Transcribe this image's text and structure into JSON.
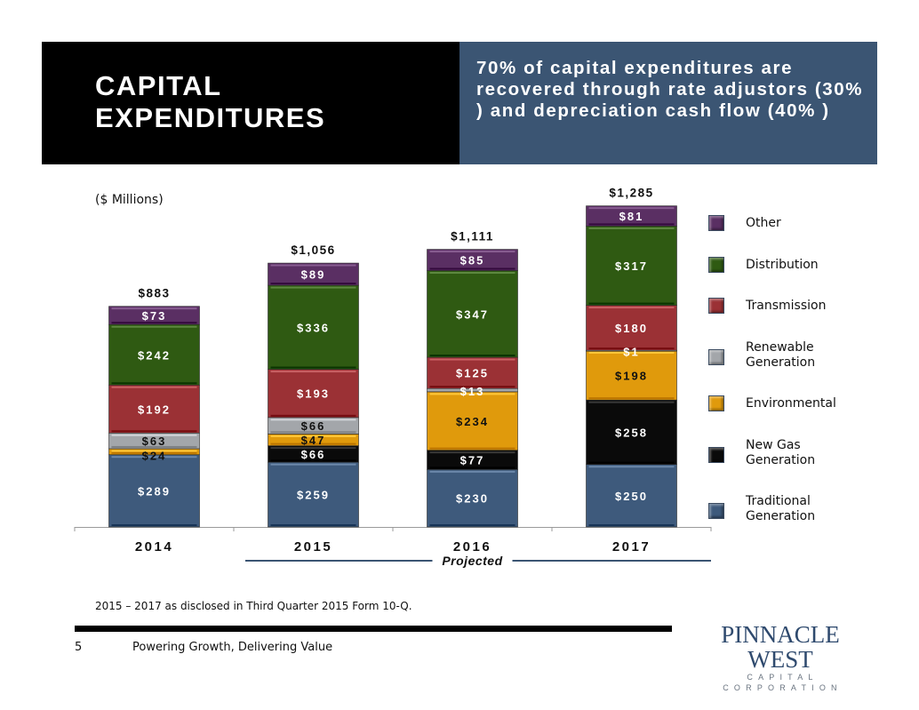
{
  "header": {
    "title_line1": "CAPITAL",
    "title_line2": "EXPENDITURES",
    "subtitle": "70%  of capital expenditures are recovered through rate adjustors (30% ) and depreciation cash flow (40% )",
    "left_bg": "#000000",
    "right_bg": "#3b5573"
  },
  "units_label": "($ Millions)",
  "chart_data": {
    "type": "bar",
    "stacked": true,
    "title": "Capital Expenditures",
    "ylabel": "($ Millions)",
    "xlabel": "",
    "categories": [
      "2014",
      "2015",
      "2016",
      "2017"
    ],
    "ylim": [
      0,
      1400
    ],
    "grid": false,
    "legend_position": "right",
    "totals": [
      "$883",
      "$1,056",
      "$1,111",
      "$1,285"
    ],
    "total_values": [
      883,
      1056,
      1111,
      1285
    ],
    "series": [
      {
        "name": "Traditional Generation",
        "color": "#3e5a7c",
        "label_color": "#ffffff",
        "values": [
          289,
          259,
          230,
          250
        ]
      },
      {
        "name": "New Gas Generation",
        "color": "#0a0a0a",
        "label_color": "#ffffff",
        "values": [
          0,
          66,
          77,
          258
        ]
      },
      {
        "name": "Environmental",
        "color": "#e09a0c",
        "label_color": "#111111",
        "values": [
          24,
          47,
          234,
          198
        ]
      },
      {
        "name": "Renewable Generation",
        "color": "#a3a6aa",
        "label_color": "#111111",
        "values": [
          63,
          66,
          13,
          1
        ]
      },
      {
        "name": "Transmission",
        "color": "#9b3135",
        "label_color": "#ffffff",
        "values": [
          192,
          193,
          125,
          180
        ]
      },
      {
        "name": "Distribution",
        "color": "#2f5a12",
        "label_color": "#ffffff",
        "values": [
          242,
          336,
          347,
          317
        ]
      },
      {
        "name": "Other",
        "color": "#5a2f63",
        "label_color": "#ffffff",
        "values": [
          73,
          89,
          85,
          81
        ]
      }
    ],
    "data_labels": [
      [
        "$289",
        "",
        "$24",
        "$63",
        "$192",
        "$242",
        "$73"
      ],
      [
        "$259",
        "$66",
        "$47",
        "$66",
        "$193",
        "$336",
        "$89"
      ],
      [
        "$230",
        "$77",
        "$234",
        "$13",
        "$125",
        "$347",
        "$85"
      ],
      [
        "$250",
        "$258",
        "$198",
        "$1",
        "$180",
        "$317",
        "$81"
      ]
    ],
    "annotation": {
      "text": "Projected",
      "spans": [
        "2015",
        "2017"
      ],
      "line_color": "#3b5573"
    }
  },
  "legend": [
    {
      "label": "Other",
      "color": "#5a2f63"
    },
    {
      "label": "Distribution",
      "color": "#2f5a12"
    },
    {
      "label": "Transmission",
      "color": "#9b3135"
    },
    {
      "label": "Renewable\nGeneration",
      "color": "#a3a6aa"
    },
    {
      "label": "Environmental",
      "color": "#e09a0c"
    },
    {
      "label": "New Gas\nGeneration",
      "color": "#0a0a0a"
    },
    {
      "label": "Traditional\nGeneration",
      "color": "#3e5a7c"
    }
  ],
  "footnote": "2015 – 2017 as disclosed in Third Quarter 2015 Form 10-Q.",
  "footer": {
    "page_number": "5",
    "tagline": "Powering Growth, Delivering Value",
    "logo_main": "PINNACLE WEST",
    "logo_sub": "CAPITAL CORPORATION"
  }
}
